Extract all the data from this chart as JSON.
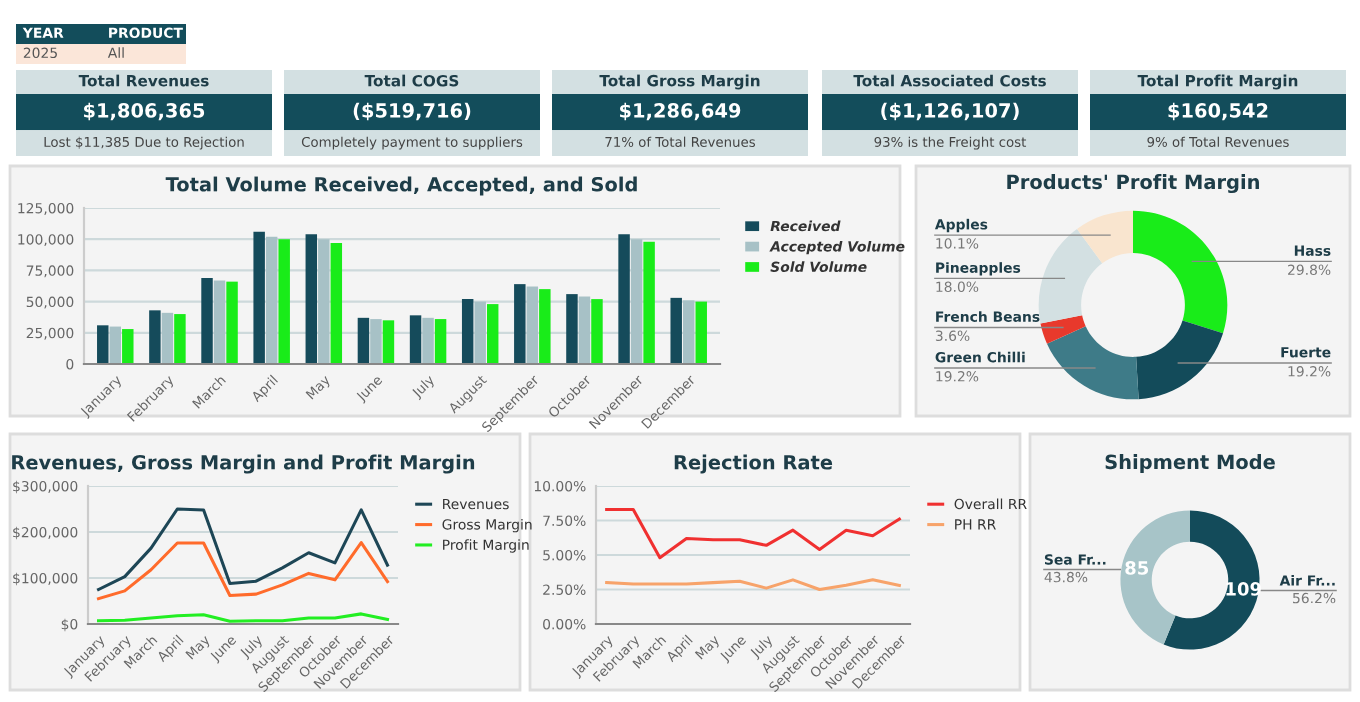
{
  "chart_data": [
    {
      "type": "other",
      "annotations": [
        "YEAR",
        "PRODUCT",
        "2025",
        "All"
      ]
    },
    {
      "type": "other",
      "title": "Total Revenues",
      "annotations": [
        "$1,806,365",
        "Lost $11,385 Due to Rejection"
      ]
    },
    {
      "type": "other",
      "title": "Total COGS",
      "annotations": [
        "($519,716)",
        "Completely payment to suppliers"
      ]
    },
    {
      "type": "other",
      "title": "Total Gross Margin",
      "annotations": [
        "$1,286,649",
        "71% of Total Revenues"
      ]
    },
    {
      "type": "other",
      "title": "Total Associated Costs",
      "annotations": [
        "($1,126,107)",
        "93% is the Freight cost"
      ]
    },
    {
      "type": "other",
      "title": "Total Profit Margin",
      "annotations": [
        "$160,542",
        "9% of Total Revenues"
      ]
    },
    {
      "type": "bar",
      "title": "Total Volume Received, Accepted, and Sold",
      "categories": [
        "January",
        "February",
        "March",
        "April",
        "May",
        "June",
        "July",
        "August",
        "September",
        "October",
        "November",
        "December"
      ],
      "series": [
        {
          "name": "Received",
          "color": "#154b5b",
          "values": [
            31000,
            43000,
            69000,
            106000,
            104000,
            37000,
            39000,
            52000,
            64000,
            56000,
            104000,
            53000
          ]
        },
        {
          "name": "Accepted Volume",
          "color": "#a7c1c6",
          "values": [
            30000,
            41000,
            67000,
            102000,
            100000,
            36000,
            37000,
            50000,
            62000,
            54000,
            100000,
            51000
          ]
        },
        {
          "name": "Sold Volume",
          "color": "#19ec19",
          "values": [
            28000,
            40000,
            66000,
            100000,
            97000,
            35000,
            36000,
            48000,
            60000,
            52000,
            98000,
            50000
          ]
        }
      ],
      "ylim": [
        0,
        125000
      ],
      "yticks": [
        {
          "value": 0,
          "label": "0"
        },
        {
          "value": 25000,
          "label": "25,000"
        },
        {
          "value": 50000,
          "label": "50,000"
        },
        {
          "value": 75000,
          "label": "75,000"
        },
        {
          "value": 100000,
          "label": "100,000"
        },
        {
          "value": 125000,
          "label": "125,000"
        }
      ],
      "grid": "y",
      "legend": "right"
    },
    {
      "type": "donut",
      "title": "Products' Profit Margin",
      "categories": [
        "Hass",
        "Fuerte",
        "Green Chilli",
        "French Beans",
        "Pineapples",
        "Apples"
      ],
      "values": [
        29.8,
        19.2,
        19.2,
        3.6,
        18.0,
        10.1
      ],
      "colors": [
        "#19ec19",
        "#134b5a",
        "#3e7b88",
        "#e8392c",
        "#d3e0e2",
        "#f9e5cf"
      ],
      "value_labels": [
        "29.8%",
        "19.2%",
        "19.2%",
        "3.6%",
        "18.0%",
        "10.1%"
      ]
    },
    {
      "type": "line",
      "title": "Revenues, Gross Margin and Profit Margin",
      "categories": [
        "January",
        "February",
        "March",
        "April",
        "May",
        "June",
        "July",
        "August",
        "September",
        "October",
        "November",
        "December"
      ],
      "series": [
        {
          "name": "Revenues",
          "color": "#1d4656",
          "values": [
            75000,
            103000,
            165000,
            250000,
            248000,
            88000,
            93000,
            122000,
            155000,
            133000,
            248000,
            128000
          ]
        },
        {
          "name": "Gross Margin",
          "color": "#ff6b2b",
          "values": [
            55000,
            72000,
            118000,
            176000,
            176000,
            62000,
            65000,
            85000,
            110000,
            96000,
            177000,
            92000
          ]
        },
        {
          "name": "Profit Margin",
          "color": "#22ee22",
          "values": [
            7000,
            8000,
            13000,
            18000,
            20000,
            6000,
            7000,
            7000,
            13000,
            13000,
            22000,
            10000
          ]
        }
      ],
      "ylim": [
        0,
        300000
      ],
      "yticks": [
        {
          "value": 0,
          "label": "$0"
        },
        {
          "value": 100000,
          "label": "$100,000"
        },
        {
          "value": 200000,
          "label": "$200,000"
        },
        {
          "value": 300000,
          "label": "$300,000"
        }
      ],
      "grid": "y",
      "legend": "right",
      "marker": "none",
      "line_style": "solid"
    },
    {
      "type": "line",
      "title": "Rejection Rate",
      "categories": [
        "January",
        "February",
        "March",
        "April",
        "May",
        "June",
        "July",
        "August",
        "September",
        "October",
        "November",
        "December"
      ],
      "series": [
        {
          "name": "Overall RR",
          "color": "#f03030",
          "values": [
            8.3,
            8.3,
            4.8,
            6.2,
            6.1,
            6.1,
            5.7,
            6.8,
            5.4,
            6.8,
            6.4,
            7.6
          ]
        },
        {
          "name": "PH RR",
          "color": "#f7a36a",
          "values": [
            3.0,
            2.9,
            2.9,
            2.9,
            3.0,
            3.1,
            2.6,
            3.2,
            2.5,
            2.8,
            3.2,
            2.8
          ]
        }
      ],
      "ylim": [
        0,
        10
      ],
      "yticks": [
        {
          "value": 0,
          "label": "0.00%"
        },
        {
          "value": 2.5,
          "label": "2.50%"
        },
        {
          "value": 5,
          "label": "5.00%"
        },
        {
          "value": 7.5,
          "label": "7.50%"
        },
        {
          "value": 10,
          "label": "10.00%"
        }
      ],
      "grid": "y",
      "legend": "right",
      "marker": "none",
      "line_style": "solid"
    },
    {
      "type": "donut",
      "title": "Shipment Mode",
      "categories": [
        "Air Fr...",
        "Sea Fr..."
      ],
      "values": [
        109,
        85
      ],
      "colors": [
        "#134b5a",
        "#a7c4c8"
      ],
      "value_labels": [
        "109",
        "85"
      ],
      "annotations": [
        "56.2%",
        "43.8%"
      ]
    }
  ]
}
